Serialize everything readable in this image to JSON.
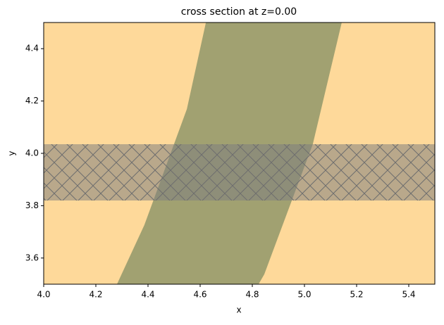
{
  "chart_data": {
    "type": "polygon",
    "title": "cross section at z=0.00",
    "x_label": "x",
    "y_label": "y",
    "xlim": [
      4.0,
      5.5
    ],
    "ylim": [
      3.5,
      4.5
    ],
    "xticks": [
      {
        "value": 4.0,
        "label": "4.0"
      },
      4.2,
      4.4,
      4.6,
      4.8,
      {
        "value": 5.0,
        "label": "5.0"
      },
      5.2,
      5.4
    ],
    "yticks": [
      3.6,
      3.8,
      {
        "value": 4.0,
        "label": "4.0"
      },
      4.2,
      4.4
    ],
    "background": "#fed99a",
    "shapes": [
      {
        "color": "#a1a171",
        "x": [
          4.622,
          5.143,
          5.032,
          4.846,
          4.824,
          4.281,
          4.386,
          4.549
        ],
        "y": [
          4.5,
          4.5,
          4.035,
          3.538,
          3.5,
          3.5,
          3.726,
          4.169
        ]
      },
      {
        "color": "#808080",
        "hatch": "x",
        "x": [
          4.0,
          5.5,
          5.5,
          4.0
        ],
        "y": [
          3.82,
          3.82,
          4.035,
          4.035
        ]
      }
    ]
  }
}
